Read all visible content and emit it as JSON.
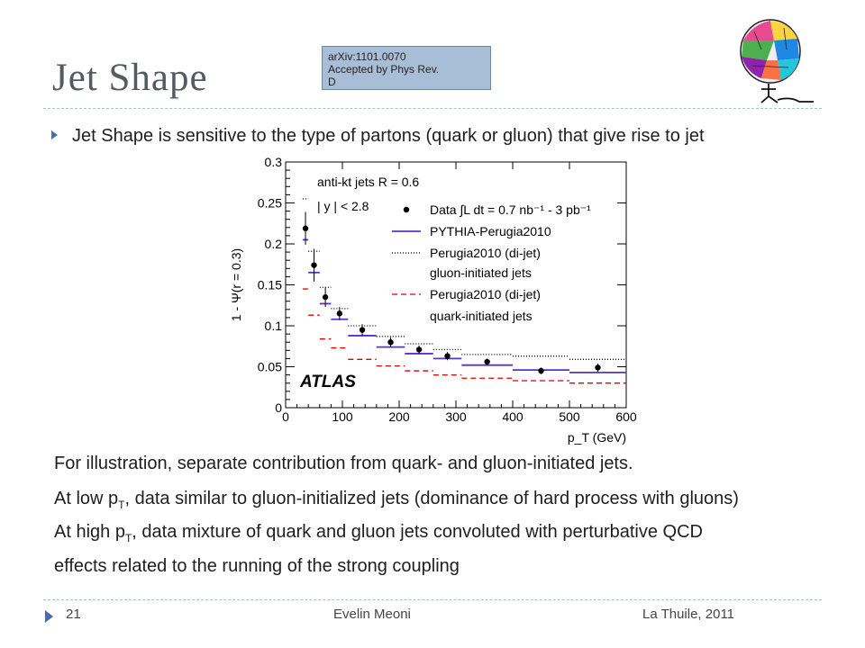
{
  "slide": {
    "title": "Jet Shape",
    "reference_line1": "arXiv:1101.0070",
    "reference_line2": "Accepted by Phys Rev.",
    "reference_line3": "D",
    "bullet": "Jet Shape is sensitive to the type of partons (quark or gluon) that give rise to jet",
    "line1": "For illustration, separate contribution from quark- and gluon-initiated jets.",
    "line2_pre": "At low p",
    "line2_sub": "T",
    "line2_post": ", data similar to gluon-initialized jets (dominance of hard process with gluons)",
    "line3_pre": "At high p",
    "line3_sub": "T",
    "line3_post": ", data mixture of quark and gluon jets convoluted with perturbative QCD",
    "line4": "effects related to the running of the strong coupling",
    "footer_page": "21",
    "footer_author": "Evelin Meoni",
    "footer_event": "La Thuile, 2011"
  },
  "chart_data": {
    "type": "line",
    "ylabel": "1 - Ψ(r = 0.3)",
    "xlabel": "p_T (GeV)",
    "xlim": [
      0,
      600
    ],
    "ylim": [
      0,
      0.3
    ],
    "xticks": [
      0,
      100,
      200,
      300,
      400,
      500,
      600
    ],
    "yticks": [
      0,
      0.05,
      0.1,
      0.15,
      0.2,
      0.25,
      0.3
    ],
    "ytick_labels": [
      "0",
      "0.05",
      "0.1",
      "0.15",
      "0.2",
      "0.25",
      "0.3"
    ],
    "annotation1": "anti-kt jets R = 0.6",
    "annotation2": "| y | < 2.8",
    "experiment_label": "ATLAS",
    "bin_edges": [
      30,
      40,
      60,
      80,
      110,
      160,
      210,
      260,
      310,
      400,
      500,
      600
    ],
    "data": {
      "name": "Data ∫L dt = 0.7 nb⁻¹ - 3 pb⁻¹",
      "x": [
        35,
        50,
        70,
        95,
        135,
        185,
        235,
        285,
        355,
        450,
        550
      ],
      "y": [
        0.219,
        0.174,
        0.135,
        0.115,
        0.095,
        0.08,
        0.071,
        0.063,
        0.056,
        0.045,
        0.049
      ],
      "err": [
        0.02,
        0.02,
        0.012,
        0.008,
        0.007,
        0.006,
        0.005,
        0.005,
        0.004,
        0.004,
        0.005
      ]
    },
    "series": [
      {
        "name": "PYTHIA-Perugia2010",
        "style": "solid",
        "color": "#5533cc",
        "values": [
          0.205,
          0.165,
          0.127,
          0.108,
          0.088,
          0.074,
          0.066,
          0.06,
          0.052,
          0.046,
          0.043
        ]
      },
      {
        "name": "Perugia2010 (di-jet) gluon-initiated jets",
        "style": "dotted",
        "color": "#000000",
        "values": [
          0.255,
          0.191,
          0.147,
          0.121,
          0.1,
          0.087,
          0.078,
          0.071,
          0.065,
          0.063,
          0.059
        ]
      },
      {
        "name": "Perugia2010 (di-jet) quark-initiated jets",
        "style": "dashed",
        "color": "#dd0000",
        "values": [
          0.145,
          0.113,
          0.084,
          0.073,
          0.059,
          0.051,
          0.045,
          0.04,
          0.036,
          0.033,
          0.03
        ]
      }
    ],
    "legend": [
      {
        "label": "Data ∫L dt = 0.7 nb⁻¹ - 3 pb⁻¹"
      },
      {
        "label": "PYTHIA-Perugia2010"
      },
      {
        "label": "Perugia2010 (di-jet)"
      },
      {
        "label": "gluon-initiated jets"
      },
      {
        "label": "Perugia2010 (di-jet)"
      },
      {
        "label": "quark-initiated jets"
      }
    ]
  },
  "colors": {
    "accent": "#4a6fa5",
    "title": "#555a60",
    "ref_box": "#a8bed6"
  }
}
